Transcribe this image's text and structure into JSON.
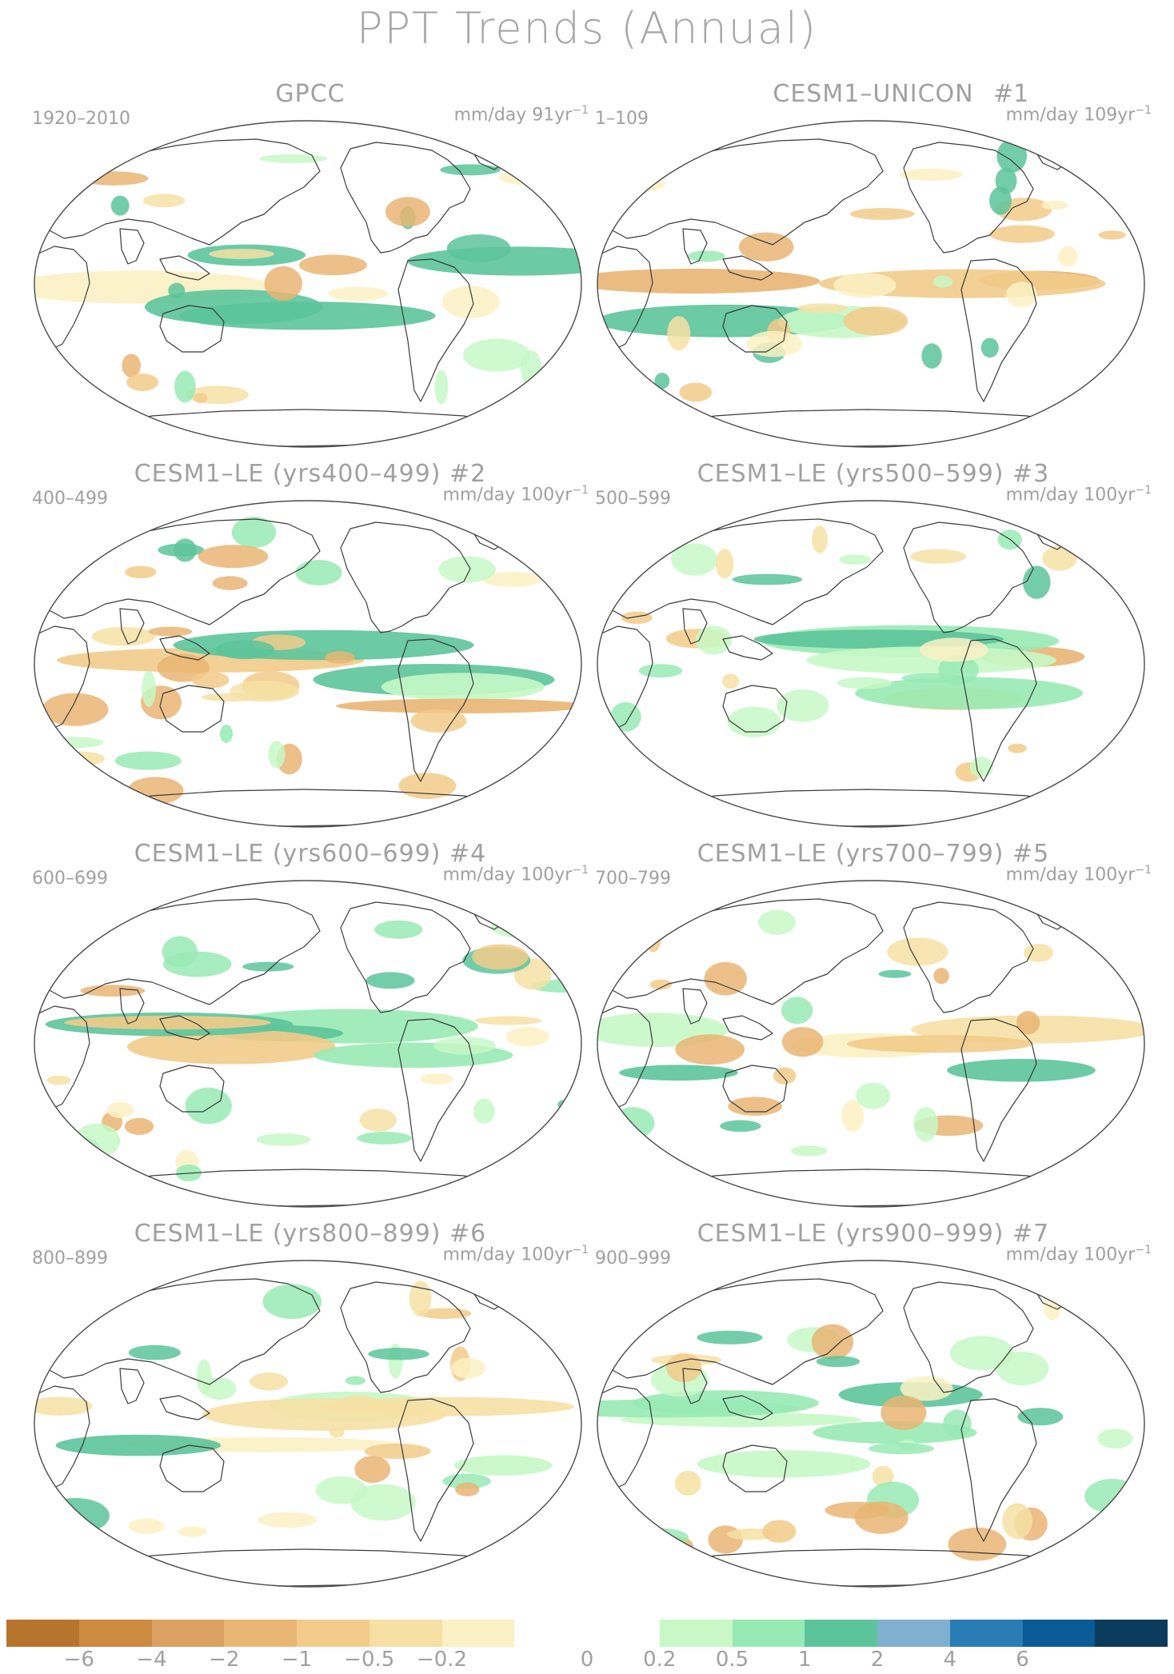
{
  "title": "PPT Trends (Annual)",
  "colorbar": {
    "colors": [
      "#b7742c",
      "#cd8a41",
      "#dba162",
      "#e9b573",
      "#f2cb8a",
      "#f6e0a4",
      "#fbf1c4",
      "#ffffff",
      "#ffffff",
      "#c7f8c6",
      "#98eab4",
      "#5cc49b",
      "#7fb0cf",
      "#2a7cb5",
      "#0b5b96",
      "#0a3a5c"
    ],
    "tick_labels": [
      "−6",
      "−4",
      "−2",
      "−1",
      "−0.5",
      "−0.2",
      "0",
      "0.2",
      "0.5",
      "1",
      "2",
      "4",
      "6"
    ]
  },
  "panels": [
    {
      "name": "GPCC",
      "period": "1920–2010",
      "units": "mm/day 91yr",
      "units_exp": "−1",
      "num": ""
    },
    {
      "name": "CESM1–UNICON",
      "period": "1–109",
      "units": "mm/day 109yr",
      "units_exp": "−1",
      "num": "#1"
    },
    {
      "name": "CESM1–LE (yrs400–499) #2",
      "period": "400–499",
      "units": "mm/day 100yr",
      "units_exp": "−1",
      "num": ""
    },
    {
      "name": "CESM1–LE (yrs500–599) #3",
      "period": "500–599",
      "units": "mm/day 100yr",
      "units_exp": "−1",
      "num": ""
    },
    {
      "name": "CESM1–LE (yrs600–699) #4",
      "period": "600–699",
      "units": "mm/day 100yr",
      "units_exp": "−1",
      "num": ""
    },
    {
      "name": "CESM1–LE (yrs700–799) #5",
      "period": "700–799",
      "units": "mm/day 100yr",
      "units_exp": "−1",
      "num": ""
    },
    {
      "name": "CESM1–LE (yrs800–899) #6",
      "period": "800–899",
      "units": "mm/day 100yr",
      "units_exp": "−1",
      "num": ""
    },
    {
      "name": "CESM1–LE (yrs900–999) #7",
      "period": "900–999",
      "units": "mm/day 100yr",
      "units_exp": "−1",
      "num": ""
    }
  ]
}
